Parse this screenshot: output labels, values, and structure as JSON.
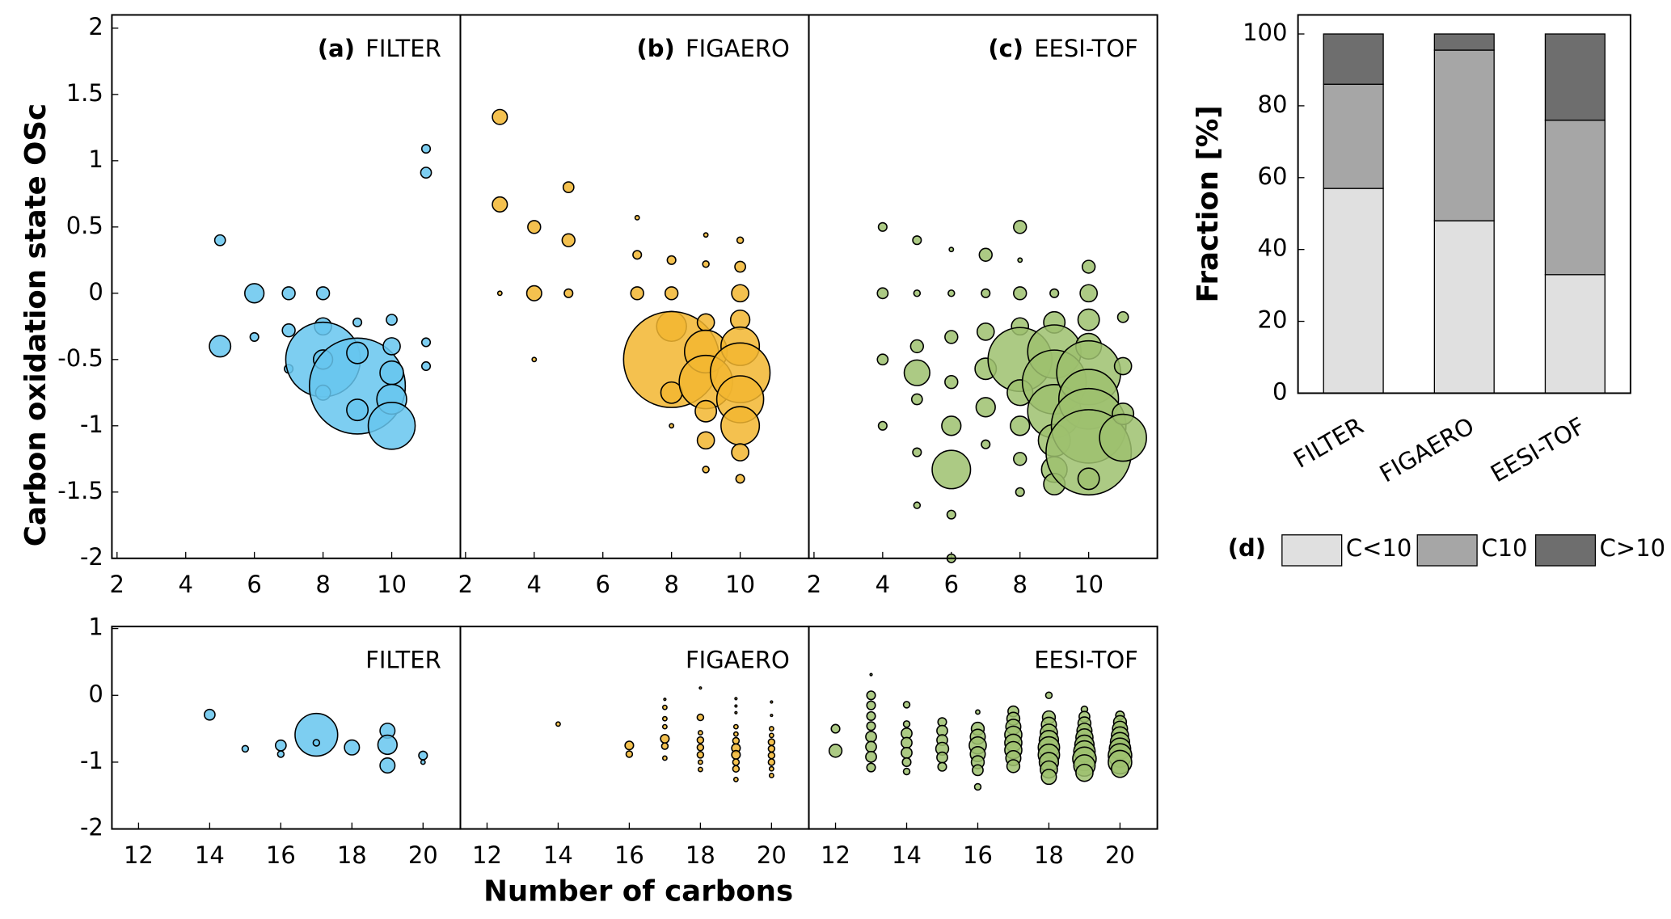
{
  "y_label": "Carbon oxidation state OSc",
  "x_label": "Number of carbons",
  "chart_data": [
    {
      "type": "scatter",
      "label": "(a)",
      "title": "FILTER",
      "color": "#66c5ef",
      "x": [
        5,
        5,
        6,
        6,
        7,
        7,
        7,
        8,
        8,
        8,
        8,
        8,
        9,
        9,
        9,
        9,
        10,
        10,
        10,
        10,
        10,
        11,
        11,
        11,
        11
      ],
      "y": [
        0.4,
        -0.4,
        0,
        -0.33,
        0,
        -0.28,
        -0.57,
        0,
        -0.25,
        -0.5,
        -0.5,
        -0.75,
        -0.7,
        -0.45,
        -0.88,
        -0.22,
        -0.2,
        -0.4,
        -0.6,
        -0.8,
        -1.0,
        1.09,
        0.91,
        -0.37,
        -0.55
      ],
      "sizes": [
        5,
        10,
        9,
        4,
        6,
        6,
        4,
        6,
        8,
        35,
        9,
        7,
        45,
        10,
        10,
        4,
        5,
        8,
        11,
        14,
        22,
        4,
        5,
        4,
        4
      ],
      "xlim": [
        1.85,
        12
      ],
      "ylim": [
        -2,
        2.1
      ],
      "xticks": [
        2,
        4,
        6,
        8,
        10
      ],
      "yticks": [
        -2,
        -1.5,
        -1,
        -0.5,
        0,
        0.5,
        1,
        1.5,
        2
      ]
    },
    {
      "type": "scatter",
      "label": "(b)",
      "title": "FIGAERO",
      "color": "#f2b630",
      "x": [
        3,
        3,
        3,
        4,
        4,
        4,
        5,
        5,
        5,
        7,
        7,
        7,
        8,
        8,
        8,
        8,
        8,
        8,
        9,
        9,
        9,
        9,
        9,
        9,
        9,
        9,
        10,
        10,
        10,
        10,
        10,
        10,
        10,
        10,
        10,
        10
      ],
      "y": [
        1.33,
        0.67,
        0,
        0.5,
        0,
        -0.5,
        0.8,
        0.4,
        0,
        0.57,
        0.29,
        0,
        0.25,
        0,
        -0.25,
        -0.5,
        -0.75,
        -1,
        0.44,
        0.22,
        -0.22,
        -0.44,
        -0.67,
        -0.89,
        -1.11,
        -1.33,
        0.4,
        0.2,
        0,
        -0.2,
        -0.4,
        -0.6,
        -0.8,
        -1,
        -1.2,
        -1.4
      ],
      "sizes": [
        7,
        7,
        2,
        6,
        7,
        2,
        5,
        6,
        4,
        2,
        4,
        6,
        4,
        6,
        14,
        45,
        10,
        2,
        2,
        3,
        8,
        20,
        25,
        10,
        8,
        3,
        3,
        5,
        8,
        9,
        18,
        28,
        22,
        18,
        8,
        4
      ],
      "xlim": [
        1.85,
        12
      ],
      "ylim": [
        -2,
        2.1
      ],
      "xticks": [
        2,
        4,
        6,
        8,
        10
      ]
    },
    {
      "type": "scatter",
      "label": "(c)",
      "title": "EESI-TOF",
      "color": "#9dc16f",
      "x": [
        4,
        4,
        4,
        4,
        5,
        5,
        5,
        5,
        5,
        5,
        5,
        6,
        6,
        6,
        6,
        6,
        6,
        6,
        6,
        7,
        7,
        7,
        7,
        7,
        7,
        8,
        8,
        8,
        8,
        8,
        8,
        8,
        8,
        8,
        9,
        9,
        9,
        9,
        9,
        9,
        9,
        9,
        10,
        10,
        10,
        10,
        10,
        10,
        10,
        10,
        10,
        11,
        11,
        11,
        11
      ],
      "y": [
        0.5,
        0,
        -0.5,
        -1,
        0.4,
        0,
        -0.4,
        -0.6,
        -0.8,
        -1.2,
        -1.6,
        0.33,
        0,
        -0.33,
        -0.67,
        -1,
        -1.33,
        -1.67,
        -2,
        0.29,
        0,
        -0.29,
        -0.57,
        -0.86,
        -1.14,
        0.5,
        0.25,
        0,
        -0.25,
        -0.5,
        -0.75,
        -1,
        -1.25,
        -1.5,
        0,
        -0.22,
        -0.44,
        -0.67,
        -0.89,
        -1.11,
        -1.33,
        -1.44,
        0.2,
        0,
        -0.2,
        -0.4,
        -0.6,
        -0.8,
        -1,
        -1.2,
        -1.4,
        -0.18,
        -0.55,
        -0.91,
        -1.09
      ],
      "sizes": [
        4,
        5,
        5,
        4,
        4,
        3,
        6,
        12,
        5,
        4,
        3,
        2,
        3,
        6,
        6,
        9,
        18,
        4,
        4,
        6,
        4,
        8,
        10,
        9,
        4,
        6,
        2,
        6,
        8,
        30,
        12,
        9,
        6,
        4,
        4,
        10,
        25,
        30,
        25,
        15,
        12,
        10,
        6,
        8,
        10,
        12,
        30,
        28,
        35,
        40,
        10,
        5,
        8,
        10,
        22
      ],
      "xlim": [
        1.85,
        12
      ],
      "ylim": [
        -2,
        2.1
      ],
      "xticks": [
        2,
        4,
        6,
        8,
        10
      ]
    },
    {
      "type": "scatter",
      "title": "FILTER",
      "color": "#66c5ef",
      "x": [
        14,
        15,
        16,
        16,
        17,
        17,
        18,
        19,
        19,
        19,
        20,
        20
      ],
      "y": [
        -0.29,
        -0.8,
        -0.75,
        -0.88,
        -0.59,
        -0.71,
        -0.78,
        -0.53,
        -0.74,
        -1.05,
        -0.9,
        -1.0
      ],
      "sizes": [
        5,
        3,
        5,
        3,
        20,
        3,
        7,
        7,
        9,
        7,
        4,
        2
      ],
      "xlim": [
        11.25,
        21.05
      ],
      "ylim": [
        -2,
        1.03
      ],
      "xticks": [
        12,
        14,
        16,
        18,
        20
      ],
      "yticks": [
        -2,
        -1,
        0,
        1
      ]
    },
    {
      "type": "scatter",
      "title": "FIGAERO",
      "color": "#f2b630",
      "x": [
        14,
        16,
        16,
        17,
        17,
        17,
        17,
        17,
        17,
        17,
        18,
        18,
        18,
        18,
        18,
        18,
        18,
        18,
        19,
        19,
        19,
        19,
        19,
        19,
        19,
        19,
        19,
        19,
        19,
        20,
        20,
        20,
        20,
        20,
        20,
        20,
        20,
        20,
        20
      ],
      "y": [
        -0.43,
        -0.75,
        -0.88,
        -0.06,
        -0.18,
        -0.35,
        -0.47,
        -0.65,
        -0.76,
        -0.94,
        0.11,
        -0.33,
        -0.56,
        -0.67,
        -0.78,
        -0.89,
        -1.0,
        -1.11,
        -0.05,
        -0.16,
        -0.26,
        -0.47,
        -0.58,
        -0.68,
        -0.79,
        -0.89,
        -1.0,
        -1.1,
        -1.26,
        -0.1,
        -0.3,
        -0.5,
        -0.6,
        -0.7,
        -0.8,
        -0.9,
        -1.0,
        -1.1,
        -1.2
      ],
      "sizes": [
        2,
        4,
        3,
        1,
        2,
        2,
        2,
        4,
        3,
        2,
        1,
        3,
        2,
        3,
        3,
        3,
        2,
        2,
        1,
        1,
        1,
        2,
        2,
        3,
        4,
        4,
        3,
        3,
        2,
        1,
        1,
        2,
        2,
        3,
        3,
        3,
        3,
        2,
        2
      ],
      "xlim": [
        11.25,
        21.05
      ],
      "ylim": [
        -2,
        1.03
      ],
      "xticks": [
        12,
        14,
        16,
        18,
        20
      ]
    },
    {
      "type": "scatter",
      "title": "EESI-TOF",
      "color": "#9dc16f",
      "x": [
        12,
        12,
        13,
        13,
        13,
        13,
        13,
        13,
        13,
        13,
        13,
        14,
        14,
        14,
        14,
        14,
        14,
        14,
        15,
        15,
        15,
        15,
        15,
        15,
        16,
        16,
        16,
        16,
        16,
        16,
        16,
        16,
        17,
        17,
        17,
        17,
        17,
        17,
        17,
        17,
        18,
        18,
        18,
        18,
        18,
        18,
        18,
        18,
        18,
        18,
        19,
        19,
        19,
        19,
        19,
        19,
        19,
        19,
        19,
        19,
        20,
        20,
        20,
        20,
        20,
        20,
        20,
        20,
        20
      ],
      "y": [
        -0.5,
        -0.83,
        0.31,
        0,
        -0.15,
        -0.31,
        -0.46,
        -0.62,
        -0.77,
        -0.92,
        -1.08,
        -0.14,
        -0.43,
        -0.57,
        -0.71,
        -0.86,
        -1.0,
        -1.14,
        -0.4,
        -0.53,
        -0.67,
        -0.8,
        -0.93,
        -1.07,
        -0.25,
        -0.5,
        -0.62,
        -0.75,
        -0.88,
        -1.0,
        -1.12,
        -1.37,
        -0.24,
        -0.35,
        -0.47,
        -0.59,
        -0.71,
        -0.82,
        -0.94,
        -1.06,
        0,
        -0.33,
        -0.44,
        -0.56,
        -0.67,
        -0.78,
        -0.89,
        -1.0,
        -1.11,
        -1.22,
        -0.21,
        -0.32,
        -0.42,
        -0.53,
        -0.63,
        -0.74,
        -0.84,
        -0.95,
        -1.05,
        -1.16,
        -0.3,
        -0.4,
        -0.5,
        -0.6,
        -0.7,
        -0.8,
        -0.9,
        -1.0,
        -1.1
      ],
      "sizes": [
        4,
        6,
        1,
        4,
        4,
        4,
        4,
        5,
        5,
        5,
        4,
        3,
        3,
        5,
        5,
        5,
        4,
        3,
        4,
        5,
        5,
        6,
        5,
        4,
        2,
        6,
        7,
        8,
        7,
        6,
        5,
        3,
        5,
        6,
        7,
        8,
        8,
        8,
        7,
        6,
        3,
        6,
        7,
        8,
        9,
        10,
        10,
        9,
        8,
        7,
        3,
        5,
        6,
        7,
        8,
        9,
        10,
        11,
        10,
        8,
        4,
        6,
        7,
        8,
        9,
        10,
        11,
        11,
        8
      ],
      "xlim": [
        11.25,
        21.05
      ],
      "ylim": [
        -2,
        1.03
      ],
      "xticks": [
        12,
        14,
        16,
        18,
        20
      ]
    },
    {
      "type": "stacked_bar",
      "label": "(d)",
      "y_label": "Fraction [%]",
      "categories": [
        "FILTER",
        "FIGAERO",
        "EESI-TOF"
      ],
      "series": [
        {
          "name": "C<10",
          "color": "#e0e0e0",
          "values": [
            57,
            48,
            33
          ]
        },
        {
          "name": "C10",
          "color": "#a6a6a6",
          "values": [
            29,
            47.5,
            43
          ]
        },
        {
          "name": "C>10",
          "color": "#6e6e6e",
          "values": [
            14,
            4.5,
            24
          ]
        }
      ],
      "ylim": [
        0,
        105.3
      ],
      "yticks": [
        0,
        20,
        40,
        60,
        80,
        100
      ]
    }
  ]
}
